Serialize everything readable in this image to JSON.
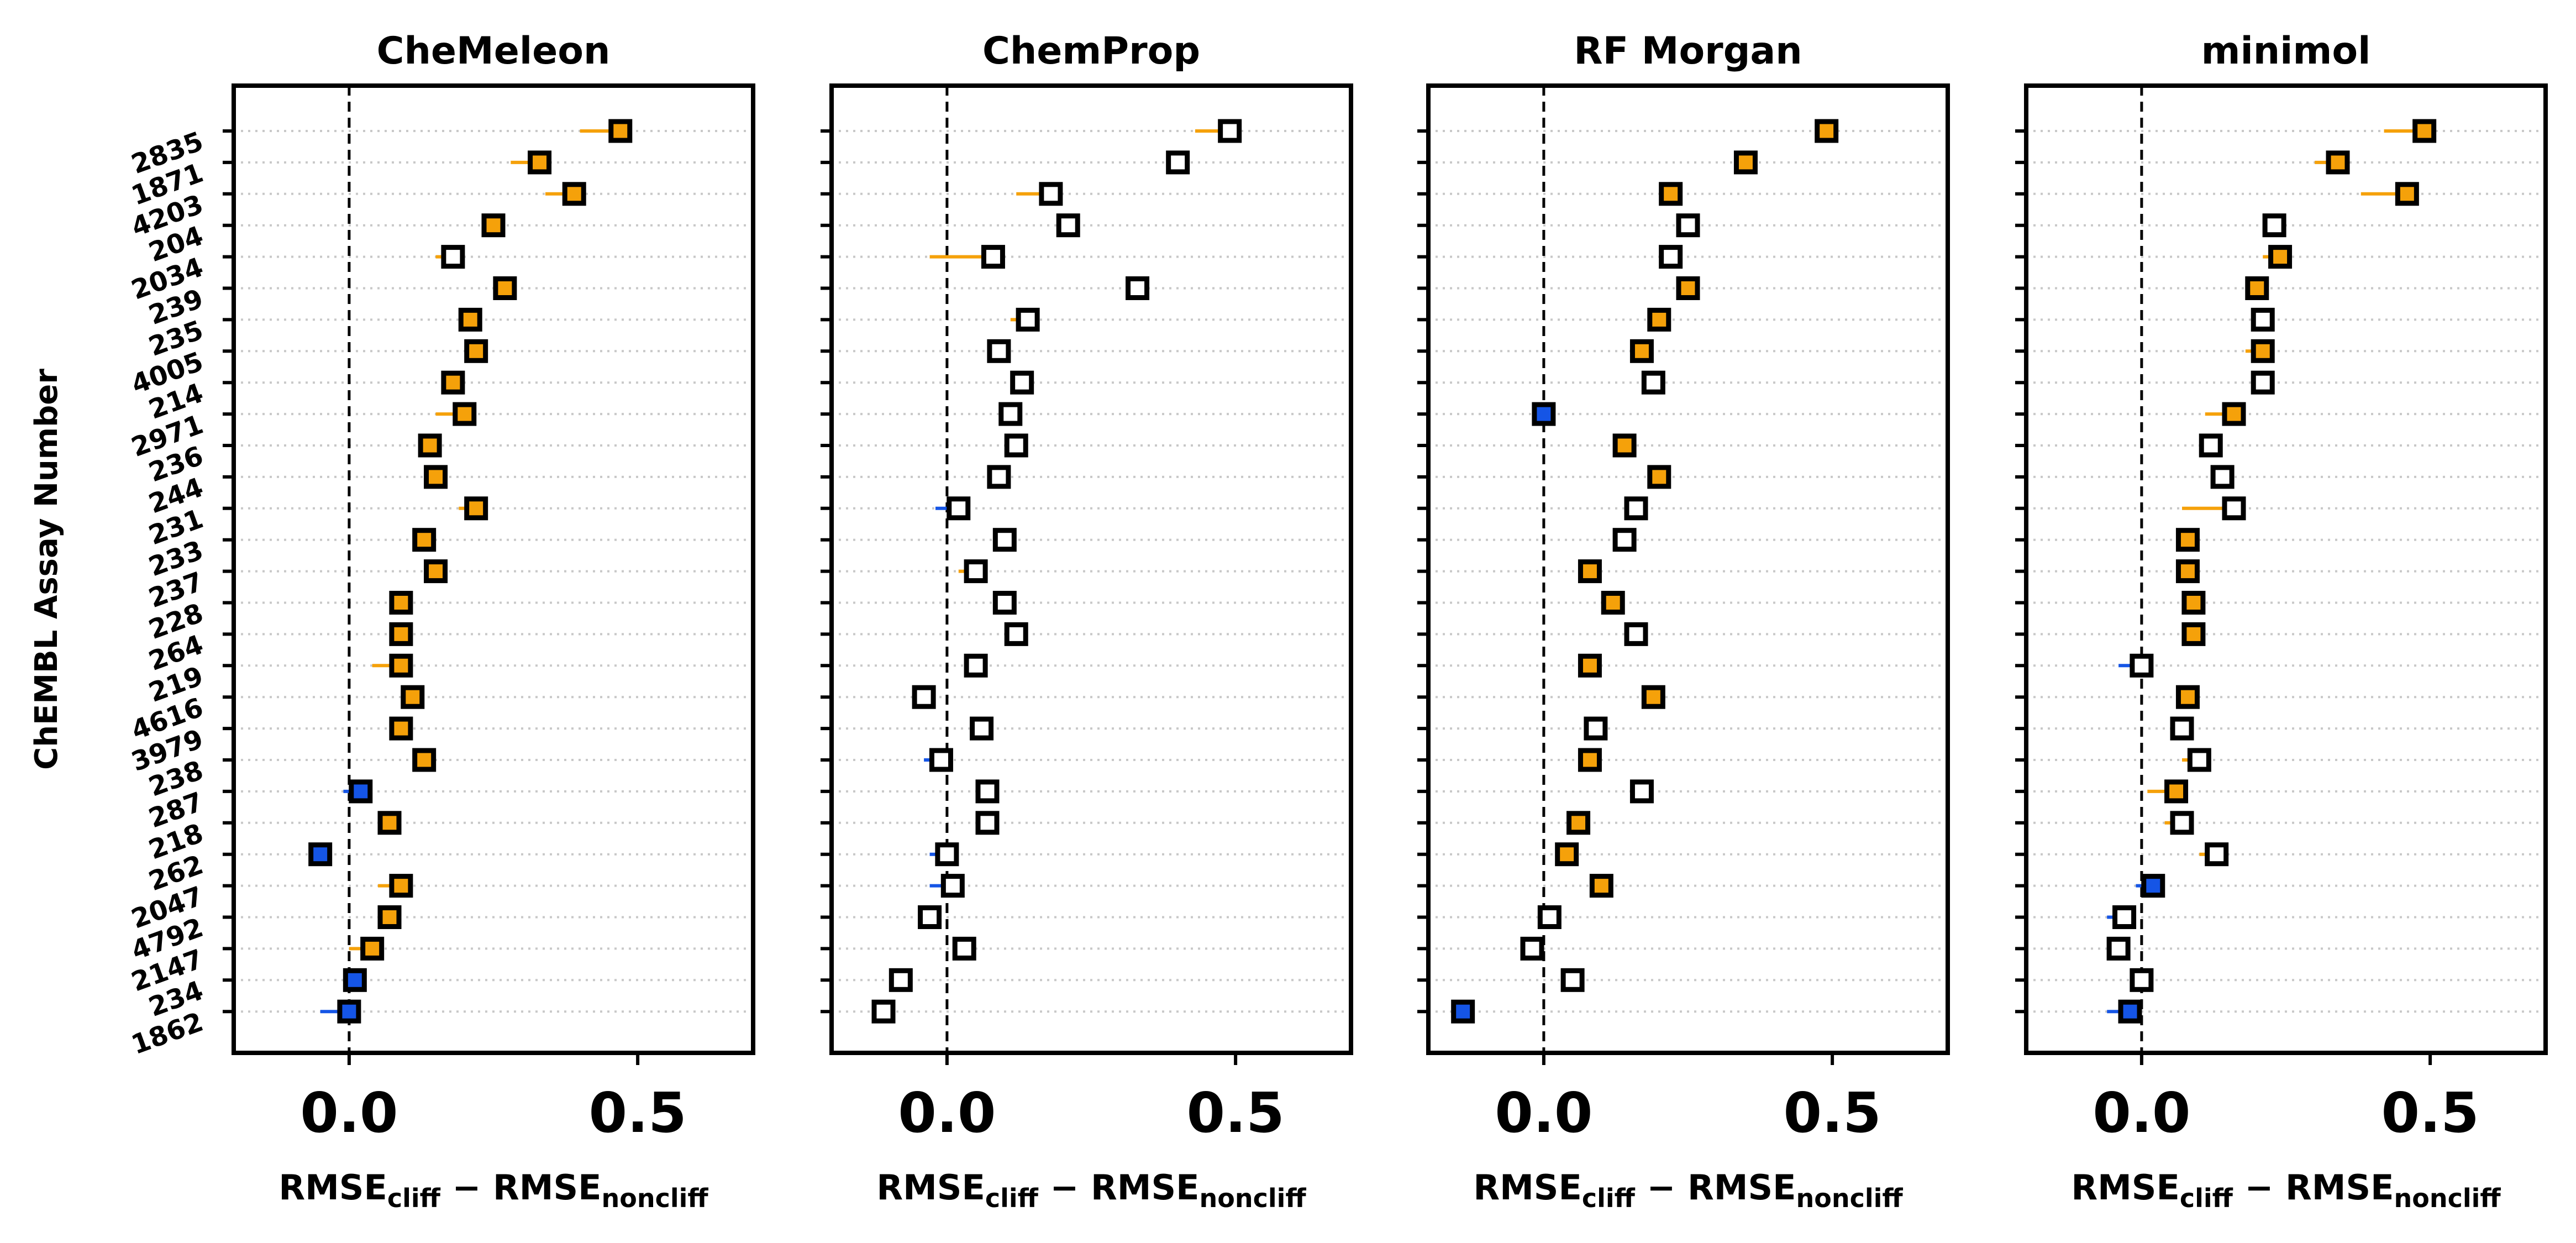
{
  "figure": {
    "ylabel": "ChEMBL Assay Number",
    "assays": [
      "2835",
      "1871",
      "4203",
      "204",
      "2034",
      "239",
      "235",
      "4005",
      "214",
      "2971",
      "236",
      "244",
      "231",
      "233",
      "237",
      "228",
      "264",
      "219",
      "4616",
      "3979",
      "238",
      "287",
      "218",
      "262",
      "2047",
      "4792",
      "2147",
      "234",
      "1862"
    ],
    "xlabel_main": "RMSE",
    "xlabel_sub1": "cliff",
    "xlabel_minus": "−",
    "xlabel_sub2": "noncliff",
    "xticks": [
      0.0,
      0.5
    ],
    "xtick_labels": [
      "0.0",
      "0.5"
    ],
    "xlim": [
      -0.2,
      0.7
    ],
    "colors": {
      "positive": "#f5a10a",
      "negative": "#1555e6",
      "outline": "#000000"
    }
  },
  "chart_data": [
    {
      "type": "scatter",
      "title": "CheMeleon",
      "x": [
        0.47,
        0.33,
        0.39,
        0.25,
        0.18,
        0.27,
        0.21,
        0.22,
        0.18,
        0.2,
        0.14,
        0.15,
        0.22,
        0.13,
        0.15,
        0.09,
        0.09,
        0.09,
        0.11,
        0.09,
        0.13,
        0.02,
        0.07,
        -0.05,
        0.09,
        0.07,
        0.04,
        0.01,
        0.0
      ],
      "err": [
        0.07,
        0.05,
        0.05,
        0.02,
        0.03,
        0.01,
        0.01,
        0.01,
        0.01,
        0.05,
        0.01,
        0.01,
        0.03,
        0.01,
        0.01,
        0.01,
        0.01,
        0.05,
        0.01,
        0.01,
        0.01,
        0.03,
        0.01,
        0.02,
        0.04,
        0.01,
        0.04,
        0.01,
        0.05
      ],
      "filled": [
        true,
        true,
        true,
        true,
        false,
        true,
        true,
        true,
        true,
        true,
        true,
        true,
        true,
        true,
        true,
        true,
        true,
        true,
        true,
        true,
        true,
        true,
        true,
        true,
        true,
        true,
        true,
        true,
        true
      ]
    },
    {
      "type": "scatter",
      "title": "ChemProp",
      "x": [
        0.49,
        0.4,
        0.18,
        0.21,
        0.08,
        0.33,
        0.14,
        0.09,
        0.13,
        0.11,
        0.12,
        0.09,
        0.02,
        0.1,
        0.05,
        0.1,
        0.12,
        0.05,
        -0.04,
        0.06,
        -0.01,
        0.07,
        0.07,
        0.0,
        0.01,
        -0.03,
        0.03,
        -0.08,
        -0.11
      ],
      "err": [
        0.06,
        0.01,
        0.06,
        0.01,
        0.11,
        0.02,
        0.03,
        0.01,
        0.01,
        0.01,
        0.01,
        0.01,
        0.04,
        0.01,
        0.03,
        0.02,
        0.01,
        0.01,
        0.01,
        0.01,
        0.03,
        0.01,
        0.01,
        0.03,
        0.04,
        0.01,
        0.01,
        0.01,
        0.02
      ],
      "filled": [
        false,
        false,
        false,
        false,
        false,
        false,
        false,
        false,
        false,
        false,
        false,
        false,
        false,
        false,
        false,
        false,
        false,
        false,
        false,
        false,
        false,
        false,
        false,
        false,
        false,
        false,
        false,
        false,
        false
      ]
    },
    {
      "type": "scatter",
      "title": "RF Morgan",
      "x": [
        0.49,
        0.35,
        0.22,
        0.25,
        0.22,
        0.25,
        0.2,
        0.17,
        0.19,
        0.0,
        0.14,
        0.2,
        0.16,
        0.14,
        0.08,
        0.12,
        0.16,
        0.08,
        0.19,
        0.09,
        0.08,
        0.17,
        0.06,
        0.04,
        0.1,
        0.01,
        -0.02,
        0.05,
        -0.14
      ],
      "err": [
        0.01,
        0.01,
        0.01,
        0.01,
        0.01,
        0.01,
        0.01,
        0.01,
        0.01,
        0.01,
        0.01,
        0.01,
        0.01,
        0.01,
        0.01,
        0.01,
        0.01,
        0.01,
        0.01,
        0.01,
        0.01,
        0.01,
        0.01,
        0.01,
        0.01,
        0.01,
        0.02,
        0.01,
        0.01
      ],
      "filled": [
        true,
        true,
        true,
        false,
        false,
        true,
        true,
        true,
        false,
        true,
        true,
        true,
        false,
        false,
        true,
        true,
        false,
        true,
        true,
        false,
        true,
        false,
        true,
        true,
        true,
        false,
        false,
        false,
        true
      ]
    },
    {
      "type": "scatter",
      "title": "minimol",
      "x": [
        0.49,
        0.34,
        0.46,
        0.23,
        0.24,
        0.2,
        0.21,
        0.21,
        0.21,
        0.16,
        0.12,
        0.14,
        0.16,
        0.08,
        0.08,
        0.09,
        0.09,
        0.0,
        0.08,
        0.07,
        0.1,
        0.06,
        0.07,
        0.13,
        0.02,
        -0.03,
        -0.04,
        0.0,
        -0.02
      ],
      "err": [
        0.07,
        0.04,
        0.08,
        0.01,
        0.03,
        0.02,
        0.01,
        0.03,
        0.01,
        0.05,
        0.01,
        0.02,
        0.09,
        0.01,
        0.01,
        0.01,
        0.01,
        0.04,
        0.01,
        0.01,
        0.03,
        0.05,
        0.03,
        0.03,
        0.03,
        0.03,
        0.02,
        0.01,
        0.04
      ],
      "filled": [
        true,
        true,
        true,
        false,
        true,
        true,
        false,
        true,
        false,
        true,
        false,
        false,
        false,
        true,
        true,
        true,
        true,
        false,
        true,
        false,
        false,
        true,
        false,
        false,
        true,
        false,
        false,
        false,
        true
      ]
    }
  ]
}
